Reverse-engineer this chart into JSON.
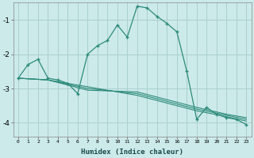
{
  "xlabel": "Humidex (Indice chaleur)",
  "bg_color": "#cceaea",
  "grid_color": "#aacfcf",
  "line_color": "#2d8b7a",
  "line1_x": [
    0,
    1,
    2,
    3,
    4,
    5,
    6,
    7,
    8,
    9,
    10,
    11,
    12,
    13,
    14,
    15,
    16,
    17,
    18,
    19,
    20,
    21,
    22,
    23
  ],
  "line1_y": [
    -2.7,
    -2.3,
    -2.15,
    -2.7,
    -2.75,
    -2.85,
    -3.15,
    -2.0,
    -1.75,
    -1.6,
    -1.15,
    -1.5,
    -0.6,
    -0.65,
    -0.9,
    -1.1,
    -1.35,
    -2.5,
    -3.9,
    -3.55,
    -3.75,
    -3.85,
    -3.9,
    -4.05
  ],
  "line2_x": [
    0,
    3,
    7,
    12,
    18,
    21,
    23
  ],
  "line2_y": [
    -2.7,
    -2.75,
    -3.05,
    -3.1,
    -3.55,
    -3.75,
    -3.85
  ],
  "line3_x": [
    0,
    3,
    7,
    12,
    18,
    21,
    23
  ],
  "line3_y": [
    -2.7,
    -2.75,
    -3.0,
    -3.15,
    -3.6,
    -3.78,
    -3.9
  ],
  "line4_x": [
    0,
    3,
    7,
    12,
    18,
    21,
    23
  ],
  "line4_y": [
    -2.7,
    -2.75,
    -2.95,
    -3.2,
    -3.65,
    -3.82,
    -3.95
  ],
  "ylim": [
    -4.4,
    -0.5
  ],
  "xlim": [
    -0.5,
    23.5
  ],
  "yticks": [
    -4,
    -3,
    -2,
    -1
  ],
  "xticks": [
    0,
    1,
    2,
    3,
    4,
    5,
    6,
    7,
    8,
    9,
    10,
    11,
    12,
    13,
    14,
    15,
    16,
    17,
    18,
    19,
    20,
    21,
    22,
    23
  ]
}
